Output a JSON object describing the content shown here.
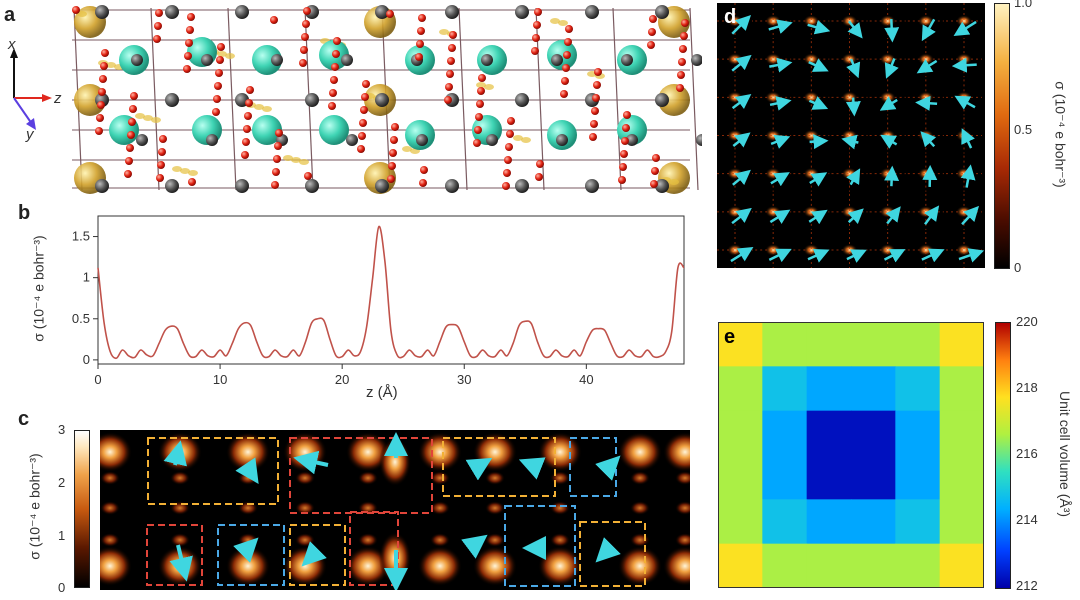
{
  "panels": {
    "a": {
      "letter": "a",
      "axes": {
        "x": "x",
        "y": "y",
        "z": "z"
      }
    },
    "b": {
      "letter": "b",
      "ylabel": "σ (10⁻⁴ e bohr⁻³)",
      "xlabel": "z (Å)"
    },
    "c": {
      "letter": "c",
      "colorbar_label": "σ (10⁻⁴ e bohr⁻³)",
      "colorbar_ticks": [
        "0",
        "1",
        "2",
        "3"
      ]
    },
    "d": {
      "letter": "d",
      "colorbar_label": "σ (10⁻⁴ e bohr⁻³)",
      "colorbar_ticks": [
        "0",
        "0.5",
        "1.0"
      ]
    },
    "e": {
      "letter": "e",
      "colorbar_label": "Unit cell volume (Å³)",
      "colorbar_ticks": [
        "212",
        "214",
        "216",
        "218",
        "220"
      ]
    }
  },
  "colors": {
    "line": "#c0524a",
    "arrow": "#3fd6e0",
    "box_orange": "#f2b035",
    "box_red": "#e0453a",
    "box_blue": "#4aa8e6"
  },
  "chart_data": [
    {
      "type": "line",
      "panel": "b",
      "xlabel": "z (Å)",
      "ylabel": "σ (10⁻⁴ e bohr⁻³)",
      "xlim": [
        0,
        48
      ],
      "ylim": [
        -0.05,
        1.75
      ],
      "xticks": [
        0,
        10,
        20,
        30,
        40
      ],
      "yticks": [
        0,
        0.5,
        1.0,
        1.5
      ],
      "series": [
        {
          "x": [
            0,
            0.5,
            1,
            1.5,
            2,
            2.5,
            3,
            3.5,
            4,
            4.5,
            5,
            5.5,
            6,
            6.5,
            7,
            7.5,
            8,
            8.5,
            9,
            9.5,
            10,
            10.5,
            11,
            11.5,
            12,
            12.5,
            13,
            13.5,
            14,
            14.5,
            15,
            15.5,
            16,
            16.5,
            17,
            17.5,
            18,
            18.5,
            19,
            19.5,
            20,
            20.5,
            21,
            21.5,
            22,
            22.5,
            23,
            23.5,
            24,
            24.5,
            25,
            25.5,
            26,
            26.5,
            27,
            27.5,
            28,
            28.5,
            29,
            29.5,
            30,
            30.5,
            31,
            31.5,
            32,
            32.5,
            33,
            33.5,
            34,
            34.5,
            35,
            35.5,
            36,
            36.5,
            37,
            37.5,
            38,
            38.5,
            39,
            39.5,
            40,
            40.5,
            41,
            41.5,
            42,
            42.5,
            43,
            43.5,
            44,
            44.5,
            45,
            45.5,
            46,
            46.5,
            47,
            47.5,
            48
          ],
          "values": [
            1.12,
            0.45,
            0.1,
            0.02,
            0.12,
            0.05,
            0.03,
            0.12,
            0.06,
            0.05,
            0.2,
            0.36,
            0.41,
            0.38,
            0.2,
            0.05,
            0.04,
            0.12,
            0.05,
            0.04,
            0.12,
            0.05,
            0.2,
            0.38,
            0.45,
            0.42,
            0.22,
            0.05,
            0.04,
            0.12,
            0.05,
            0.04,
            0.12,
            0.05,
            0.22,
            0.45,
            0.5,
            0.48,
            0.25,
            0.05,
            0.04,
            0.12,
            0.05,
            0.1,
            0.4,
            1.0,
            1.62,
            1.2,
            0.35,
            0.06,
            0.04,
            0.12,
            0.05,
            0.04,
            0.12,
            0.05,
            0.22,
            0.4,
            0.43,
            0.4,
            0.22,
            0.05,
            0.04,
            0.12,
            0.05,
            0.04,
            0.12,
            0.05,
            0.2,
            0.42,
            0.47,
            0.44,
            0.22,
            0.05,
            0.04,
            0.12,
            0.05,
            0.04,
            0.12,
            0.05,
            0.22,
            0.36,
            0.38,
            0.36,
            0.2,
            0.05,
            0.04,
            0.12,
            0.05,
            0.04,
            0.12,
            0.04,
            0.04,
            0.1,
            0.35,
            1.12,
            1.12
          ]
        }
      ]
    },
    {
      "type": "heatmap",
      "panel": "e",
      "colorbar_label": "Unit cell volume (Å³)",
      "vmin": 212,
      "vmax": 220,
      "grid": [
        [
          217.7,
          216.6,
          216.6,
          216.6,
          216.6,
          217.7
        ],
        [
          216.6,
          214.8,
          214.3,
          214.3,
          214.8,
          216.6
        ],
        [
          216.6,
          214.3,
          212.3,
          212.3,
          214.3,
          216.6
        ],
        [
          216.6,
          214.3,
          212.3,
          212.3,
          214.3,
          216.6
        ],
        [
          216.6,
          214.8,
          214.3,
          214.3,
          214.8,
          216.6
        ],
        [
          217.7,
          216.6,
          216.6,
          216.6,
          216.6,
          217.7
        ]
      ]
    }
  ]
}
